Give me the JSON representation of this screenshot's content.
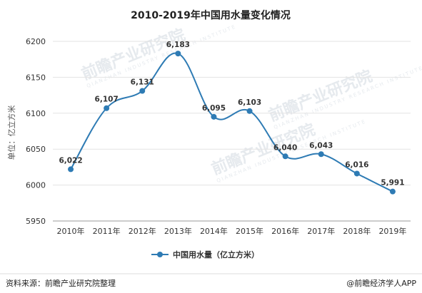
{
  "chart_data": {
    "type": "line",
    "title": "2010-2019年中国用水量变化情况",
    "ylabel": "单位：亿立方米",
    "xlabel": "",
    "categories": [
      "2010年",
      "2011年",
      "2012年",
      "2013年",
      "2014年",
      "2015年",
      "2016年",
      "2017年",
      "2018年",
      "2019年"
    ],
    "series": [
      {
        "name": "中国用水量（亿立方米）",
        "values": [
          6022,
          6107,
          6131,
          6183,
          6095,
          6103,
          6040,
          6043,
          6016,
          5991
        ],
        "labels": [
          "6,022",
          "6,107",
          "6,131",
          "6,183",
          "6,095",
          "6,103",
          "6,040",
          "6,043",
          "6,016",
          "5,991"
        ]
      }
    ],
    "ylim": [
      5950,
      6200
    ],
    "yticks": [
      5950,
      6000,
      6050,
      6100,
      6150,
      6200
    ],
    "grid": true,
    "legend_position": "bottom",
    "line_color": "#2e7bb4"
  },
  "footer": {
    "source": "资料来源：前瞻产业研究院整理",
    "credit": "@前瞻经济学人APP"
  },
  "watermark": {
    "text": "前瞻产业研究院",
    "sub": "QIANZHAN INDUSTRY RESEARCH INSTITUTE"
  }
}
